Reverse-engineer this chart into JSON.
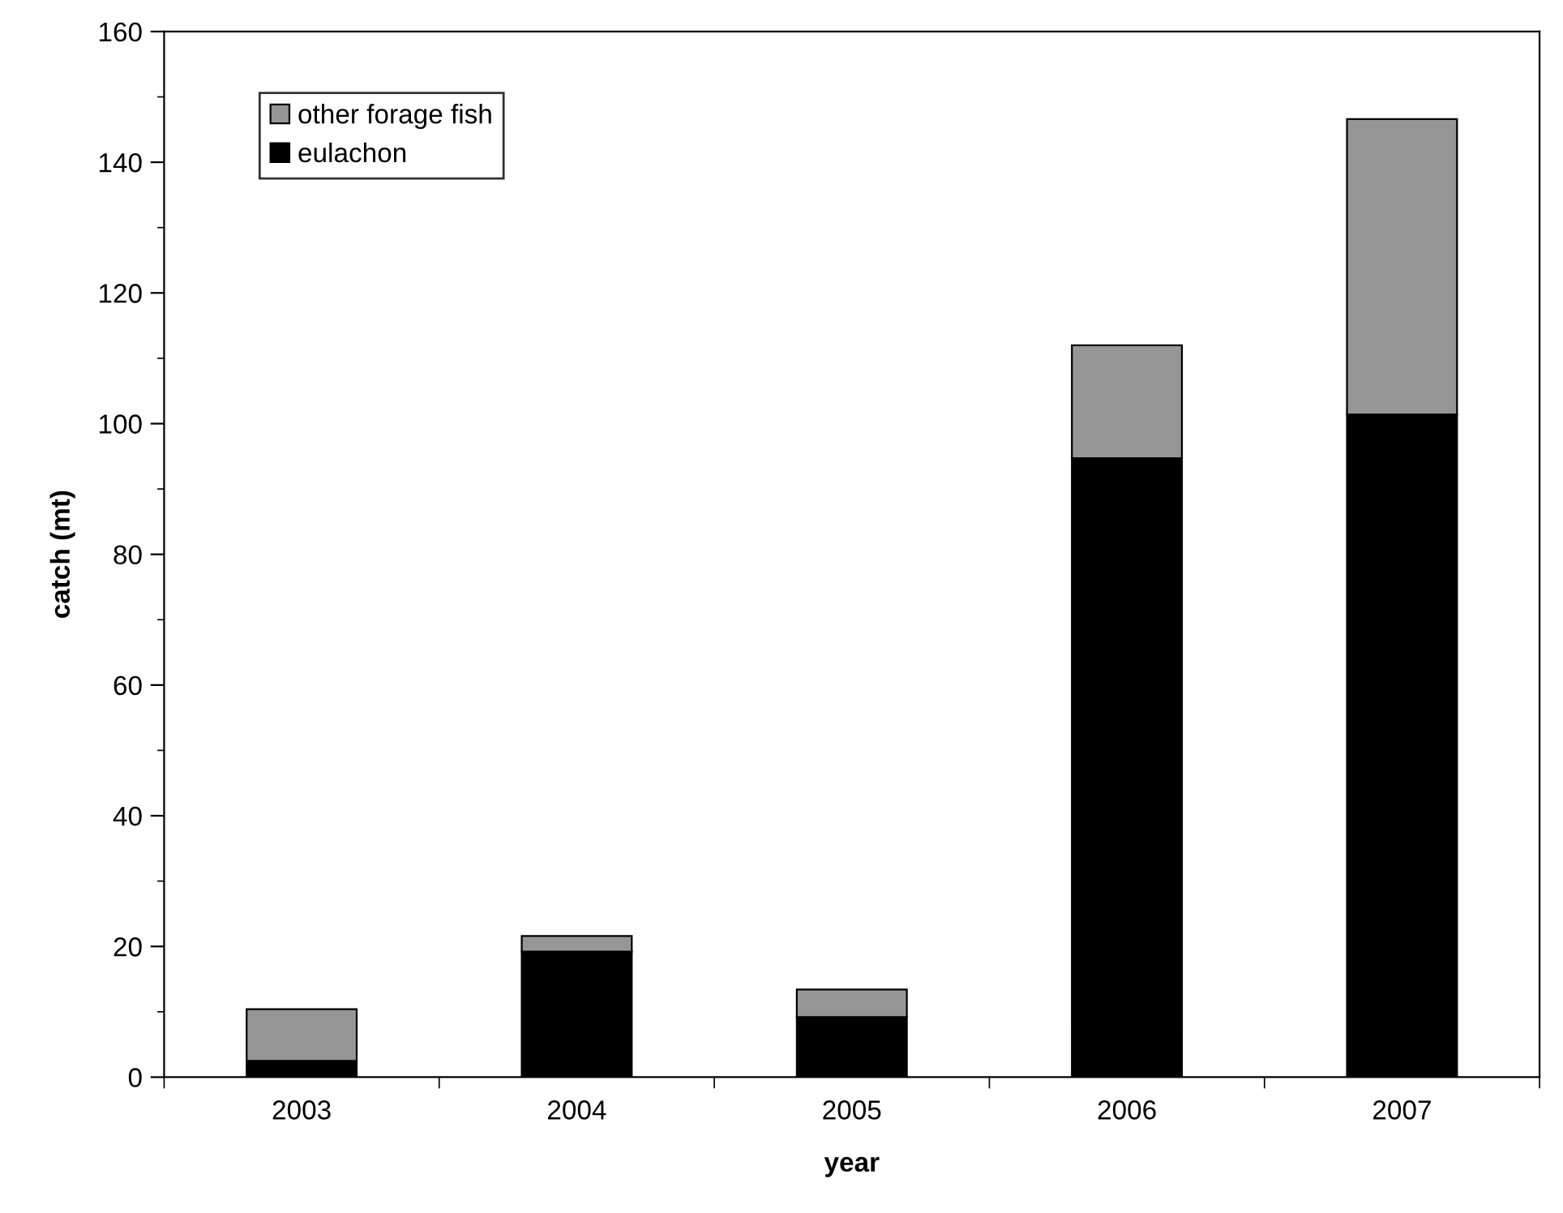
{
  "chart_data": {
    "type": "bar",
    "stacked": true,
    "xlabel": "year",
    "ylabel": "catch (mt)",
    "categories": [
      "2003",
      "2004",
      "2005",
      "2006",
      "2007"
    ],
    "series": [
      {
        "name": "eulachon",
        "color": "#000000",
        "values": [
          2.5,
          19.2,
          9.2,
          94.7,
          101.4
        ]
      },
      {
        "name": "other forage fish",
        "color": "#969696",
        "values": [
          7.9,
          2.4,
          4.2,
          17.3,
          45.2
        ]
      }
    ],
    "ylim": [
      0,
      160
    ],
    "yticks": [
      0,
      20,
      40,
      60,
      80,
      100,
      120,
      140,
      160
    ],
    "grid": false,
    "legend": "top left"
  }
}
